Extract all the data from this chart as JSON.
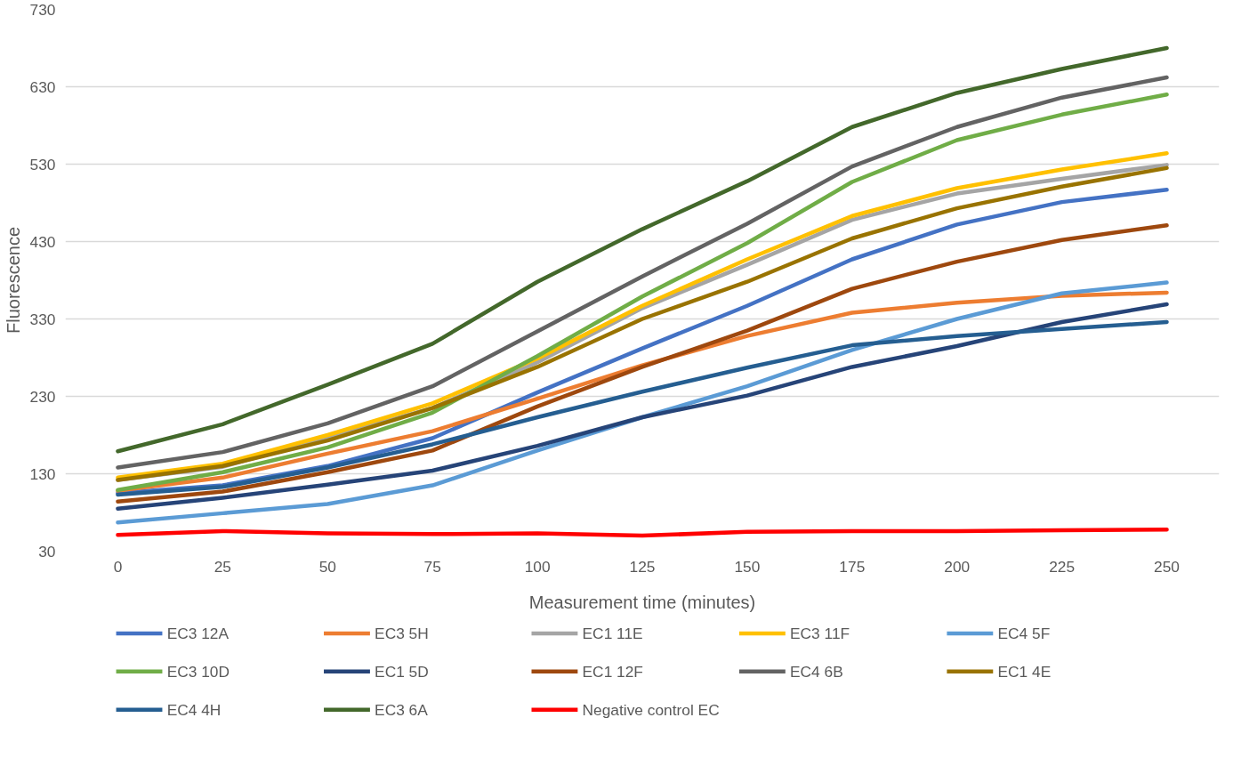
{
  "chart_data": {
    "type": "line",
    "xlabel": "Measurement time (minutes)",
    "ylabel": "Fluorescence",
    "categories": [
      "0",
      "25",
      "50",
      "75",
      "100",
      "125",
      "150",
      "175",
      "200",
      "225",
      "250"
    ],
    "ylim": [
      30,
      730
    ],
    "yticks": [
      30,
      130,
      230,
      330,
      430,
      530,
      630,
      730
    ],
    "grid": "y",
    "legend": "bottom",
    "marker": "none",
    "line_style": "solid",
    "series": [
      {
        "name": "EC3 12A",
        "color": "#4472c4",
        "values": [
          105,
          115,
          140,
          176,
          235,
          292,
          347,
          407,
          452,
          481,
          497
        ]
      },
      {
        "name": "EC3 5H",
        "color": "#ed7d31",
        "values": [
          108,
          125,
          156,
          185,
          227,
          270,
          308,
          338,
          351,
          360,
          364
        ]
      },
      {
        "name": "EC1 11E",
        "color": "#a5a5a5",
        "values": [
          122,
          139,
          177,
          215,
          274,
          344,
          400,
          458,
          492,
          511,
          529
        ]
      },
      {
        "name": "EC3 11F",
        "color": "#ffc000",
        "values": [
          125,
          143,
          180,
          221,
          279,
          347,
          407,
          463,
          499,
          523,
          544
        ]
      },
      {
        "name": "EC4 5F",
        "color": "#5b9bd5",
        "values": [
          67,
          79,
          91,
          115,
          160,
          203,
          243,
          290,
          330,
          363,
          377
        ]
      },
      {
        "name": "EC3 10D",
        "color": "#70ad47",
        "values": [
          109,
          132,
          164,
          209,
          282,
          359,
          428,
          507,
          561,
          594,
          620
        ]
      },
      {
        "name": "EC1 5D",
        "color": "#264478",
        "values": [
          85,
          99,
          116,
          134,
          166,
          203,
          231,
          268,
          295,
          326,
          349
        ]
      },
      {
        "name": "EC1 12F",
        "color": "#9e480e",
        "values": [
          94,
          107,
          132,
          160,
          217,
          268,
          315,
          369,
          404,
          432,
          451
        ]
      },
      {
        "name": "EC4 6B",
        "color": "#636363",
        "values": [
          138,
          158,
          195,
          243,
          314,
          385,
          453,
          527,
          578,
          616,
          642
        ]
      },
      {
        "name": "EC1 4E",
        "color": "#997300",
        "values": [
          122,
          140,
          173,
          215,
          268,
          330,
          378,
          434,
          473,
          501,
          525
        ]
      },
      {
        "name": "EC4 4H",
        "color": "#255e91",
        "values": [
          103,
          113,
          138,
          168,
          203,
          236,
          267,
          296,
          308,
          317,
          326
        ]
      },
      {
        "name": "EC3 6A",
        "color": "#43682b",
        "values": [
          159,
          194,
          245,
          298,
          378,
          446,
          508,
          578,
          622,
          653,
          680
        ]
      },
      {
        "name": "Negative control EC",
        "color": "#ff0000",
        "values": [
          51,
          56,
          53,
          52,
          53,
          50,
          55,
          56,
          56,
          57,
          58
        ]
      }
    ]
  }
}
